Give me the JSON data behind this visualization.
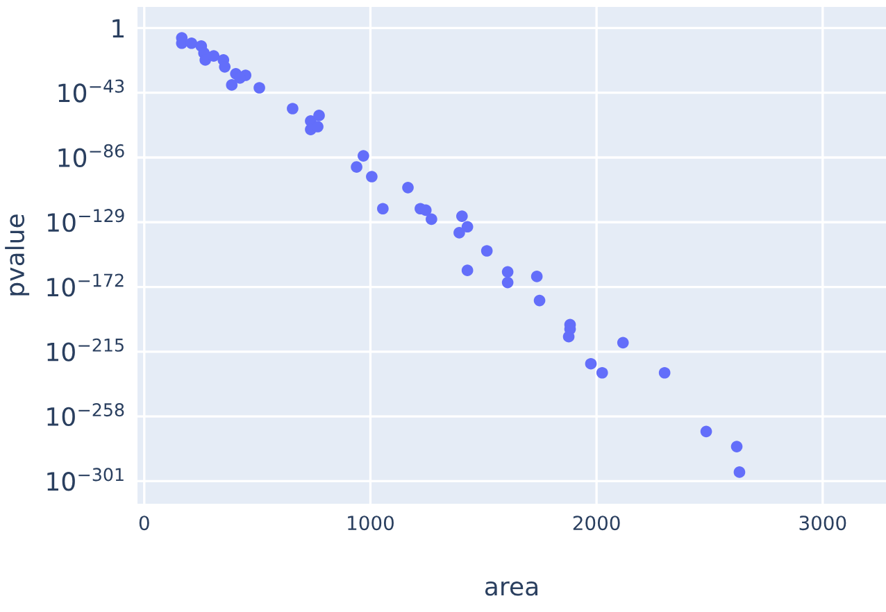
{
  "chart_data": {
    "type": "scatter",
    "xlabel": "area",
    "ylabel": "pvalue",
    "x": [
      166,
      166,
      209,
      252,
      264,
      270,
      307,
      350,
      356,
      405,
      448,
      423,
      387,
      509,
      656,
      736,
      736,
      767,
      773,
      939,
      969,
      1006,
      1055,
      1166,
      1221,
      1245,
      1270,
      1405,
      1429,
      1393,
      1515,
      1429,
      1607,
      1607,
      1736,
      1748,
      1883,
      1883,
      1877,
      2117,
      1975,
      2025,
      2301,
      2485,
      2620,
      2632
    ],
    "series": [
      {
        "color": "#636efa",
        "values": [
          3e-07,
          8e-11,
          8e-11,
          1e-12,
          2.5e-17,
          6e-22,
          3e-19,
          6e-22,
          1.6e-26,
          4e-31,
          4e-32,
          6e-34,
          1.6e-38,
          2e-40,
          3e-54,
          1.6e-62,
          4e-68,
          3e-66,
          8e-59,
          5e-93,
          1.3e-85,
          2e-99,
          1e-120,
          1e-106,
          1e-120,
          1e-121,
          1e-127,
          1e-125,
          1e-132,
          1e-136,
          1e-148,
          1e-161,
          1e-162,
          1e-169,
          1e-165,
          1e-181,
          1e-197,
          1e-200,
          1e-205,
          1e-209,
          1e-223,
          1e-229,
          1e-229,
          1e-268,
          1e-278,
          1e-295
        ]
      }
    ],
    "xlim": [
      -30,
      3280
    ],
    "xticks": [
      0,
      1000,
      2000,
      3000
    ],
    "log": "y",
    "ylim": [
      1e-316,
      100000000000000.0
    ],
    "yticks": [
      1,
      {
        "value": 1e-43,
        "label": "10$^{−43}$"
      },
      {
        "value": 1e-86,
        "label": "10$^{−86}$"
      },
      {
        "value": 1e-129,
        "label": "10$^{−129}$"
      },
      {
        "value": 1e-172,
        "label": "10$^{−172}$"
      },
      {
        "value": 1e-215,
        "label": "10$^{−215}$"
      },
      {
        "value": 1e-258,
        "label": "10$^{−258}$"
      },
      {
        "value": 1e-301,
        "label": "10$^{−301}$"
      }
    ],
    "grid": true,
    "marker": "circle"
  }
}
